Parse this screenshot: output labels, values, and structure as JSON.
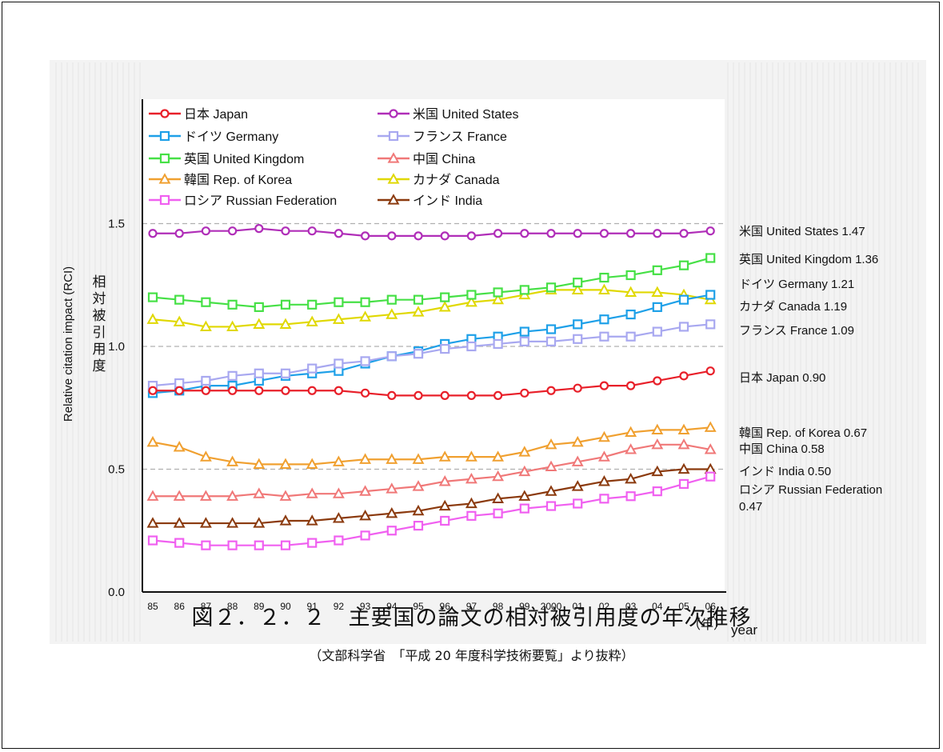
{
  "chart_data": {
    "type": "line",
    "x": [
      "85",
      "86",
      "87",
      "88",
      "89",
      "90",
      "91",
      "92",
      "93",
      "94",
      "95",
      "96",
      "97",
      "98",
      "99",
      "2000",
      "01",
      "02",
      "03",
      "04",
      "05",
      "06"
    ],
    "ylim": [
      0,
      1.6
    ],
    "yticks": [
      "0.0",
      "0.5",
      "1.0",
      "1.5"
    ],
    "reference_lines": [
      0.5,
      1.0,
      1.5
    ],
    "ylabel": "Relative citation impact (RCI)",
    "ylabel_ja": "相対被引用度",
    "xlabel": "year",
    "xlabel_ja": "（年）",
    "grid": false,
    "legend_position": "top-left",
    "series": [
      {
        "name": "日本 Japan",
        "color": "#e8202a",
        "marker": "circle",
        "values": [
          0.82,
          0.82,
          0.82,
          0.82,
          0.82,
          0.82,
          0.82,
          0.82,
          0.81,
          0.8,
          0.8,
          0.8,
          0.8,
          0.8,
          0.81,
          0.82,
          0.83,
          0.84,
          0.84,
          0.86,
          0.88,
          0.9
        ],
        "end_label": "日本 Japan  0.90"
      },
      {
        "name": "米国 United States",
        "color": "#b02eb8",
        "marker": "circle",
        "values": [
          1.46,
          1.46,
          1.47,
          1.47,
          1.48,
          1.47,
          1.47,
          1.46,
          1.45,
          1.45,
          1.45,
          1.45,
          1.45,
          1.46,
          1.46,
          1.46,
          1.46,
          1.46,
          1.46,
          1.46,
          1.46,
          1.47
        ],
        "end_label": "米国 United States  1.47"
      },
      {
        "name": "ドイツ Germany",
        "color": "#1ea0e8",
        "marker": "square",
        "values": [
          0.81,
          0.82,
          0.84,
          0.84,
          0.86,
          0.88,
          0.89,
          0.9,
          0.93,
          0.96,
          0.98,
          1.01,
          1.03,
          1.04,
          1.06,
          1.07,
          1.09,
          1.11,
          1.13,
          1.16,
          1.19,
          1.21
        ],
        "end_label": "ドイツ Germany  1.21"
      },
      {
        "name": "フランス France",
        "color": "#a8a8f0",
        "marker": "square",
        "values": [
          0.84,
          0.85,
          0.86,
          0.88,
          0.89,
          0.89,
          0.91,
          0.93,
          0.94,
          0.96,
          0.97,
          0.99,
          1.0,
          1.01,
          1.02,
          1.02,
          1.03,
          1.04,
          1.04,
          1.06,
          1.08,
          1.09
        ],
        "end_label": "フランス France  1.09"
      },
      {
        "name": "英国 United Kingdom",
        "color": "#46e046",
        "marker": "square",
        "values": [
          1.2,
          1.19,
          1.18,
          1.17,
          1.16,
          1.17,
          1.17,
          1.18,
          1.18,
          1.19,
          1.19,
          1.2,
          1.21,
          1.22,
          1.23,
          1.24,
          1.26,
          1.28,
          1.29,
          1.31,
          1.33,
          1.36
        ],
        "end_label": "英国 United Kingdom  1.36"
      },
      {
        "name": "中国 China",
        "color": "#f07878",
        "marker": "triangle",
        "values": [
          0.39,
          0.39,
          0.39,
          0.39,
          0.4,
          0.39,
          0.4,
          0.4,
          0.41,
          0.42,
          0.43,
          0.45,
          0.46,
          0.47,
          0.49,
          0.51,
          0.53,
          0.55,
          0.58,
          0.6,
          0.6,
          0.58
        ],
        "end_label": "中国 China  0.58"
      },
      {
        "name": "韓国 Rep. of Korea",
        "color": "#f0a030",
        "marker": "triangle",
        "values": [
          0.61,
          0.59,
          0.55,
          0.53,
          0.52,
          0.52,
          0.52,
          0.53,
          0.54,
          0.54,
          0.54,
          0.55,
          0.55,
          0.55,
          0.57,
          0.6,
          0.61,
          0.63,
          0.65,
          0.66,
          0.66,
          0.67
        ],
        "end_label": "韓国 Rep. of Korea  0.67"
      },
      {
        "name": "カナダ Canada",
        "color": "#e0d800",
        "marker": "triangle",
        "values": [
          1.11,
          1.1,
          1.08,
          1.08,
          1.09,
          1.09,
          1.1,
          1.11,
          1.12,
          1.13,
          1.14,
          1.16,
          1.18,
          1.19,
          1.21,
          1.23,
          1.23,
          1.23,
          1.22,
          1.22,
          1.21,
          1.19
        ],
        "end_label": "カナダ Canada  1.19"
      },
      {
        "name": "ロシア Russian Federation",
        "color": "#f060f0",
        "marker": "square",
        "values": [
          0.21,
          0.2,
          0.19,
          0.19,
          0.19,
          0.19,
          0.2,
          0.21,
          0.23,
          0.25,
          0.27,
          0.29,
          0.31,
          0.32,
          0.34,
          0.35,
          0.36,
          0.38,
          0.39,
          0.41,
          0.44,
          0.47
        ],
        "end_label": "ロシア Russian Federation",
        "end_label_value": "0.47"
      },
      {
        "name": "インド India",
        "color": "#8b3a0e",
        "marker": "triangle",
        "values": [
          0.28,
          0.28,
          0.28,
          0.28,
          0.28,
          0.29,
          0.29,
          0.3,
          0.31,
          0.32,
          0.33,
          0.35,
          0.36,
          0.38,
          0.39,
          0.41,
          0.43,
          0.45,
          0.46,
          0.49,
          0.5,
          0.5
        ],
        "end_label": "インド India  0.50"
      }
    ]
  },
  "caption": {
    "title": "図２．２．２　主要国の論文の相対被引用度の年次推移",
    "source": "（文部科学省　「平成 20 年度科学技術要覧」より抜粋）"
  }
}
